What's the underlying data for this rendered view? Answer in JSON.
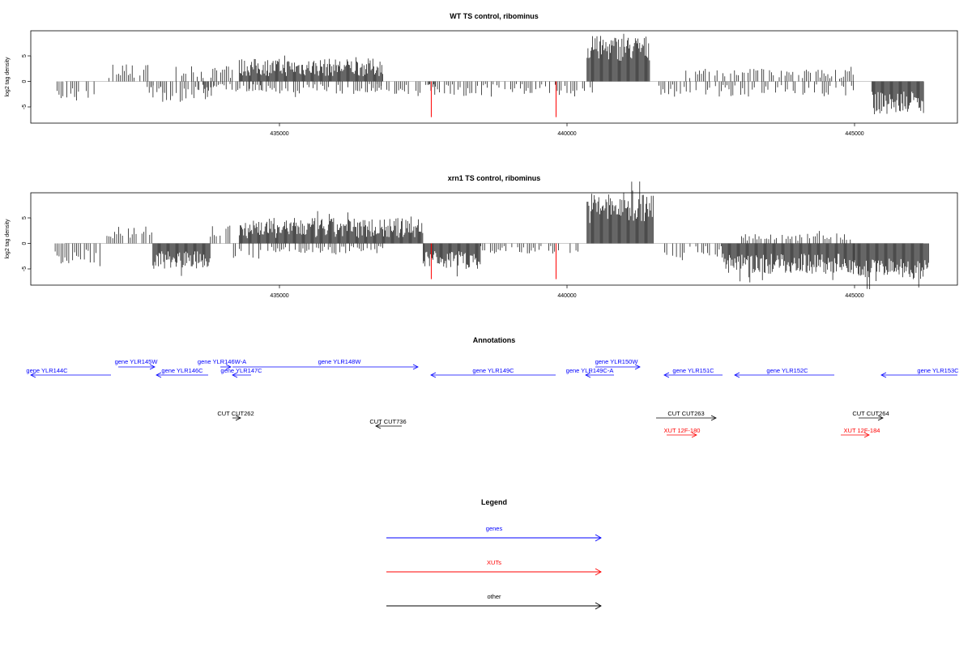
{
  "chart_data": [
    {
      "type": "bar",
      "title": "WT TS control, ribominus",
      "ylabel": "log2 tag density",
      "xlabel": "",
      "xlim": [
        431000,
        446800
      ],
      "ylim": [
        -8,
        9
      ],
      "x_ticks": [
        435000,
        440000,
        445000
      ],
      "y_ticks": [
        -5,
        0,
        5
      ],
      "grid": false,
      "series": [
        {
          "color": "#000000",
          "segments": [
            {
              "x": [
                431100,
                431800
              ],
              "y": [
                -4,
                -1
              ]
            },
            {
              "x": [
                432000,
                432800
              ],
              "y": [
                0.5,
                3.5
              ]
            },
            {
              "x": [
                432600,
                433000
              ],
              "y": [
                -3,
                -0.5
              ]
            },
            {
              "x": [
                432700,
                434000
              ],
              "y": [
                -4,
                -1
              ]
            },
            {
              "x": [
                433200,
                434200
              ],
              "y": [
                0.5,
                3
              ]
            },
            {
              "x": [
                433600,
                434700
              ],
              "y": [
                -2,
                -0.5
              ]
            },
            {
              "x": [
                434300,
                436800
              ],
              "y": [
                1,
                4.5
              ]
            },
            {
              "x": [
                434400,
                436900
              ],
              "y": [
                -2.5,
                -0.5
              ]
            },
            {
              "x": [
                436700,
                437800
              ],
              "y": [
                -2.5,
                -0.5
              ]
            },
            {
              "x": [
                437600,
                440500
              ],
              "y": [
                -3,
                -0.5
              ]
            },
            {
              "x": [
                440350,
                441450
              ],
              "y": [
                4,
                9
              ]
            },
            {
              "x": [
                441600,
                445000
              ],
              "y": [
                -3,
                -0.5
              ]
            },
            {
              "x": [
                442000,
                445000
              ],
              "y": [
                0.5,
                2.5
              ]
            },
            {
              "x": [
                445300,
                446200
              ],
              "y": [
                -6.5,
                -2
              ]
            }
          ]
        },
        {
          "color": "#ff0000",
          "points": [
            {
              "x": 437640,
              "y": -7
            },
            {
              "x": 439810,
              "y": -7
            }
          ]
        }
      ]
    },
    {
      "type": "bar",
      "title": "xrn1 TS control, ribominus",
      "ylabel": "log2 tag density",
      "xlabel": "",
      "xlim": [
        431000,
        446800
      ],
      "ylim": [
        -8,
        9
      ],
      "x_ticks": [
        435000,
        440000,
        445000
      ],
      "y_ticks": [
        -5,
        0,
        5
      ],
      "grid": false,
      "series": [
        {
          "color": "#000000",
          "segments": [
            {
              "x": [
                431100,
                431900
              ],
              "y": [
                -4,
                -1
              ]
            },
            {
              "x": [
                432000,
                432800
              ],
              "y": [
                1,
                3.5
              ]
            },
            {
              "x": [
                432800,
                433800
              ],
              "y": [
                -5,
                -1.5
              ]
            },
            {
              "x": [
                433800,
                434200
              ],
              "y": [
                1,
                3.5
              ]
            },
            {
              "x": [
                434200,
                434700
              ],
              "y": [
                -3,
                -0.5
              ]
            },
            {
              "x": [
                434300,
                437500
              ],
              "y": [
                1,
                5
              ]
            },
            {
              "x": [
                434800,
                436800
              ],
              "y": [
                -2,
                -0.5
              ]
            },
            {
              "x": [
                437500,
                438500
              ],
              "y": [
                -5,
                -1.5
              ]
            },
            {
              "x": [
                438500,
                440200
              ],
              "y": [
                -2,
                -0.5
              ]
            },
            {
              "x": [
                440350,
                441500
              ],
              "y": [
                4,
                10
              ]
            },
            {
              "x": [
                441700,
                442700
              ],
              "y": [
                -3,
                -0.5
              ]
            },
            {
              "x": [
                442700,
                445000
              ],
              "y": [
                -6,
                -2
              ]
            },
            {
              "x": [
                443000,
                445000
              ],
              "y": [
                0.5,
                2
              ]
            },
            {
              "x": [
                445000,
                446300
              ],
              "y": [
                -7,
                -3
              ]
            }
          ]
        },
        {
          "color": "#ff0000",
          "points": [
            {
              "x": 437640,
              "y": -7
            },
            {
              "x": 439810,
              "y": -7
            }
          ]
        }
      ]
    }
  ],
  "annotations": {
    "title": "Annotations",
    "features": [
      {
        "label": "gene YLR144C",
        "type": "gene",
        "color": "#0000ff",
        "dir": "-"
      },
      {
        "label": "gene YLR145W",
        "type": "gene",
        "color": "#0000ff",
        "dir": "+"
      },
      {
        "label": "gene YLR146C",
        "type": "gene",
        "color": "#0000ff",
        "dir": "-"
      },
      {
        "label": "gene YLR146W-A",
        "type": "gene",
        "color": "#0000ff",
        "dir": "+"
      },
      {
        "label": "gene YLR147C",
        "type": "gene",
        "color": "#0000ff",
        "dir": "-"
      },
      {
        "label": "gene YLR148W",
        "type": "gene",
        "color": "#0000ff",
        "dir": "+"
      },
      {
        "label": "gene YLR149C",
        "type": "gene",
        "color": "#0000ff",
        "dir": "-"
      },
      {
        "label": "gene YLR149C-A",
        "type": "gene",
        "color": "#0000ff",
        "dir": "-"
      },
      {
        "label": "gene YLR150W",
        "type": "gene",
        "color": "#0000ff",
        "dir": "+"
      },
      {
        "label": "gene YLR151C",
        "type": "gene",
        "color": "#0000ff",
        "dir": "-"
      },
      {
        "label": "gene YLR152C",
        "type": "gene",
        "color": "#0000ff",
        "dir": "-"
      },
      {
        "label": "gene YLR153C",
        "type": "gene",
        "color": "#0000ff",
        "dir": "-"
      },
      {
        "label": "CUT CUT262",
        "type": "other",
        "color": "#000000",
        "dir": "+"
      },
      {
        "label": "CUT CUT736",
        "type": "other",
        "color": "#000000",
        "dir": "-"
      },
      {
        "label": "CUT CUT263",
        "type": "other",
        "color": "#000000",
        "dir": "+"
      },
      {
        "label": "CUT CUT264",
        "type": "other",
        "color": "#000000",
        "dir": "+"
      },
      {
        "label": "XUT 12F-180",
        "type": "xut",
        "color": "#ff0000",
        "dir": "+"
      },
      {
        "label": "XUT 12F-184",
        "type": "xut",
        "color": "#ff0000",
        "dir": "+"
      }
    ]
  },
  "legend": {
    "title": "Legend",
    "items": [
      {
        "label": "genes",
        "color": "#0000ff"
      },
      {
        "label": "XUTs",
        "color": "#ff0000"
      },
      {
        "label": "other",
        "color": "#000000"
      }
    ]
  }
}
